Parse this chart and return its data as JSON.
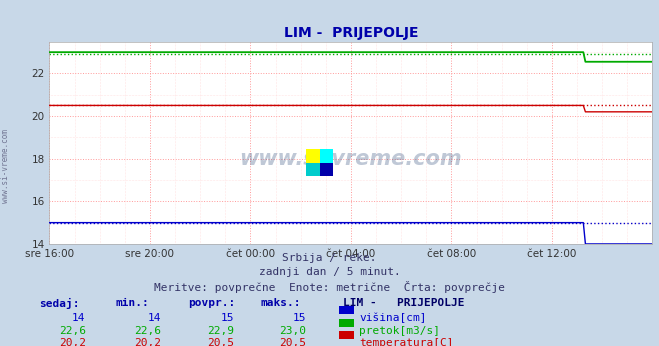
{
  "title": "LIM -  PRIJEPOLJE",
  "bg_color": "#c8d8e8",
  "plot_bg_color": "#ffffff",
  "grid_color_major": "#ff9999",
  "grid_color_minor": "#ffcccc",
  "xlabel_ticks": [
    "sre 16:00",
    "sre 20:00",
    "čet 00:00",
    "čet 04:00",
    "čet 08:00",
    "čet 12:00"
  ],
  "xlim": [
    0,
    288
  ],
  "ylim": [
    14,
    23.5
  ],
  "yticks": [
    14,
    16,
    18,
    20,
    22
  ],
  "text_lines": [
    "Srbija / reke.",
    "zadnji dan / 5 minut.",
    "Meritve: povprečne  Enote: metrične  Črta: povprečje"
  ],
  "watermark": "www.si-vreme.com",
  "sidebar_text": "www.si-vreme.com",
  "legend_title": "LIM -   PRIJEPOLJE",
  "legend_items": [
    {
      "label": "višina[cm]",
      "color": "#0000cc"
    },
    {
      "label": "pretok[m3/s]",
      "color": "#00aa00"
    },
    {
      "label": "temperatura[C]",
      "color": "#cc0000"
    }
  ],
  "table_headers": [
    "sedaj:",
    "min.:",
    "povpr.:",
    "maks.:"
  ],
  "table_data": [
    [
      "14",
      "14",
      "15",
      "15"
    ],
    [
      "22,6",
      "22,6",
      "22,9",
      "23,0"
    ],
    [
      "20,2",
      "20,2",
      "20,5",
      "20,5"
    ]
  ],
  "blue_line": {
    "value_main": 15.0,
    "value_avg": 15.0,
    "drop_x": 256,
    "drop_value": 14.0,
    "color": "#0000cc",
    "avg_color": "#0000cc"
  },
  "green_line": {
    "value_main": 23.0,
    "value_avg": 22.9,
    "drop_x": 256,
    "drop_value": 22.55,
    "color": "#00aa00",
    "avg_color": "#00aa00"
  },
  "red_line": {
    "value_main": 20.5,
    "value_avg": 20.5,
    "drop_x": 256,
    "drop_value": 20.2,
    "color": "#cc0000",
    "avg_color": "#cc0000"
  },
  "x_tick_positions": [
    0,
    48,
    96,
    144,
    192,
    240
  ],
  "arrow_color": "#cc0000",
  "title_color": "#0000aa",
  "title_fontsize": 10,
  "tick_fontsize": 7.5,
  "info_fontsize": 8,
  "table_fontsize": 8
}
